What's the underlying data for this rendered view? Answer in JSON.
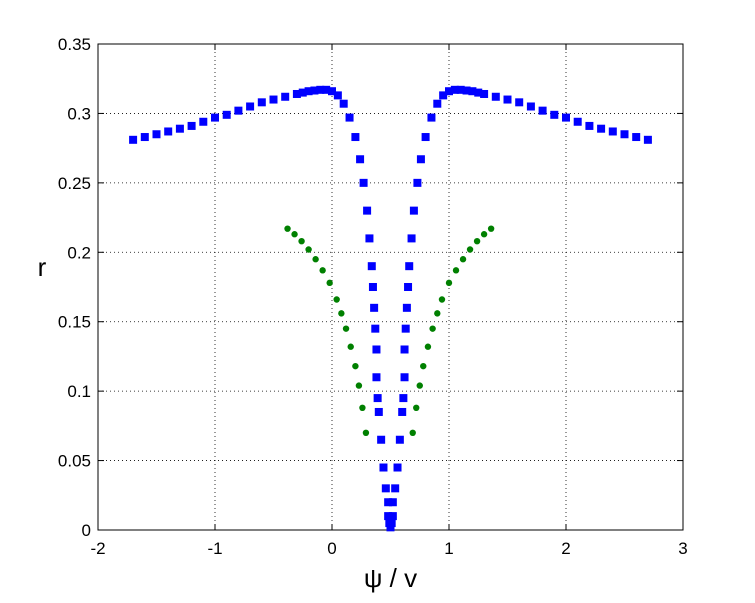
{
  "chart_data": {
    "type": "scatter",
    "title": "",
    "xlabel": "ψ / v",
    "ylabel": "r",
    "xlim": [
      -2,
      3
    ],
    "ylim": [
      0,
      0.35
    ],
    "grid": true,
    "xticks": [
      "-2",
      "-1",
      "0",
      "1",
      "2",
      "3"
    ],
    "yticks": [
      "0",
      "0.05",
      "0.1",
      "0.15",
      "0.2",
      "0.25",
      "0.3",
      "0.35"
    ],
    "series": [
      {
        "color": "#0000ff",
        "marker": "square",
        "x": [
          -1.7,
          -1.6,
          -1.5,
          -1.4,
          -1.3,
          -1.2,
          -1.1,
          -1.0,
          -0.9,
          -0.8,
          -0.7,
          -0.6,
          -0.5,
          -0.4,
          -0.3,
          -0.25,
          -0.2,
          -0.15,
          -0.1,
          -0.05,
          0.0,
          0.05,
          0.1,
          0.15,
          0.2,
          0.24,
          0.27,
          0.3,
          0.32,
          0.34,
          0.35,
          0.36,
          0.37,
          0.38,
          0.38,
          0.39,
          0.4,
          0.42,
          0.44,
          0.46,
          0.48,
          0.48,
          0.49,
          0.5,
          0.5,
          0.51,
          0.52,
          0.52,
          0.54,
          0.56,
          0.58,
          0.6,
          0.61,
          0.62,
          0.62,
          0.63,
          0.64,
          0.65,
          0.66,
          0.68,
          0.7,
          0.73,
          0.76,
          0.8,
          0.85,
          0.9,
          0.95,
          1.0,
          1.05,
          1.1,
          1.15,
          1.2,
          1.25,
          1.3,
          1.4,
          1.5,
          1.6,
          1.7,
          1.8,
          1.9,
          2.0,
          2.1,
          2.2,
          2.3,
          2.4,
          2.5,
          2.6,
          2.7
        ],
        "y": [
          0.281,
          0.283,
          0.285,
          0.287,
          0.289,
          0.291,
          0.294,
          0.297,
          0.299,
          0.302,
          0.305,
          0.308,
          0.31,
          0.312,
          0.314,
          0.315,
          0.316,
          0.3165,
          0.317,
          0.317,
          0.316,
          0.313,
          0.307,
          0.297,
          0.283,
          0.267,
          0.25,
          0.23,
          0.21,
          0.19,
          0.175,
          0.16,
          0.145,
          0.13,
          0.11,
          0.095,
          0.085,
          0.065,
          0.045,
          0.03,
          0.02,
          0.01,
          0.005,
          0.002,
          0.002,
          0.005,
          0.01,
          0.02,
          0.03,
          0.045,
          0.065,
          0.085,
          0.095,
          0.11,
          0.13,
          0.145,
          0.16,
          0.175,
          0.19,
          0.21,
          0.23,
          0.25,
          0.267,
          0.283,
          0.297,
          0.307,
          0.313,
          0.316,
          0.317,
          0.317,
          0.3165,
          0.316,
          0.315,
          0.314,
          0.312,
          0.31,
          0.308,
          0.305,
          0.302,
          0.299,
          0.297,
          0.294,
          0.291,
          0.289,
          0.287,
          0.285,
          0.283,
          0.281
        ]
      },
      {
        "color": "#008000",
        "marker": "dot",
        "x": [
          -0.38,
          -0.32,
          -0.26,
          -0.2,
          -0.14,
          -0.08,
          -0.02,
          0.04,
          0.08,
          0.12,
          0.16,
          0.2,
          0.23,
          0.26,
          0.29,
          0.69,
          0.72,
          0.75,
          0.78,
          0.82,
          0.86,
          0.9,
          0.94,
          1.0,
          1.06,
          1.12,
          1.18,
          1.24,
          1.3,
          1.36
        ],
        "y": [
          0.217,
          0.213,
          0.208,
          0.202,
          0.195,
          0.187,
          0.178,
          0.166,
          0.156,
          0.145,
          0.132,
          0.118,
          0.104,
          0.088,
          0.07,
          0.07,
          0.088,
          0.104,
          0.118,
          0.132,
          0.145,
          0.156,
          0.166,
          0.178,
          0.187,
          0.195,
          0.202,
          0.208,
          0.213,
          0.217
        ]
      }
    ]
  }
}
